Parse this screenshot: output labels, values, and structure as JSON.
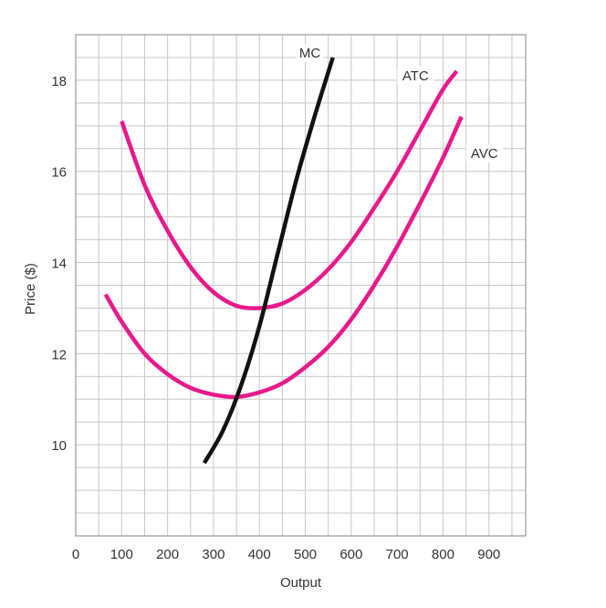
{
  "chart_data": {
    "type": "line",
    "xlabel": "Output",
    "ylabel": "Price ($)",
    "xlim": [
      0,
      980
    ],
    "ylim": [
      8,
      19
    ],
    "x_ticks": [
      0,
      100,
      200,
      300,
      400,
      500,
      600,
      700,
      800,
      900
    ],
    "y_ticks": [
      10,
      12,
      14,
      16,
      18
    ],
    "grid": true,
    "grid_minor_step_x": 50,
    "grid_minor_step_y": 0.5,
    "colors": {
      "MC": "#111111",
      "ATC": "#e8198b",
      "AVC": "#e8198b",
      "grid": "#c8c8c8",
      "frame": "#9a9a9a"
    },
    "series": [
      {
        "name": "MC",
        "points": [
          [
            280,
            9.6
          ],
          [
            320,
            10.3
          ],
          [
            360,
            11.3
          ],
          [
            400,
            12.6
          ],
          [
            440,
            14.2
          ],
          [
            480,
            15.8
          ],
          [
            520,
            17.2
          ],
          [
            560,
            18.5
          ]
        ]
      },
      {
        "name": "ATC",
        "points": [
          [
            100,
            17.1
          ],
          [
            150,
            15.7
          ],
          [
            200,
            14.7
          ],
          [
            250,
            13.9
          ],
          [
            300,
            13.35
          ],
          [
            350,
            13.05
          ],
          [
            400,
            13.0
          ],
          [
            450,
            13.1
          ],
          [
            500,
            13.4
          ],
          [
            550,
            13.85
          ],
          [
            600,
            14.45
          ],
          [
            650,
            15.2
          ],
          [
            700,
            16.0
          ],
          [
            750,
            16.9
          ],
          [
            800,
            17.8
          ],
          [
            830,
            18.2
          ]
        ]
      },
      {
        "name": "AVC",
        "points": [
          [
            65,
            13.3
          ],
          [
            100,
            12.7
          ],
          [
            150,
            12.0
          ],
          [
            200,
            11.55
          ],
          [
            250,
            11.25
          ],
          [
            300,
            11.1
          ],
          [
            350,
            11.05
          ],
          [
            400,
            11.15
          ],
          [
            450,
            11.35
          ],
          [
            500,
            11.7
          ],
          [
            550,
            12.15
          ],
          [
            600,
            12.75
          ],
          [
            650,
            13.5
          ],
          [
            700,
            14.35
          ],
          [
            750,
            15.3
          ],
          [
            800,
            16.3
          ],
          [
            840,
            17.2
          ]
        ]
      }
    ],
    "labels": [
      {
        "text": "MC",
        "x": 510,
        "y": 18.6
      },
      {
        "text": "ATC",
        "x": 740,
        "y": 18.1
      },
      {
        "text": "AVC",
        "x": 890,
        "y": 16.4
      }
    ]
  }
}
